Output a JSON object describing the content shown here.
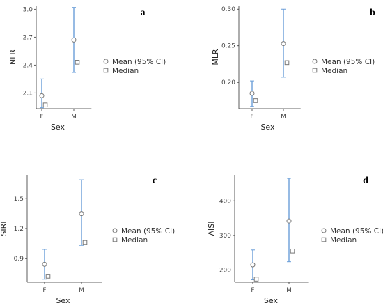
{
  "figure": {
    "legend": {
      "mean_label": "Mean (95% CI)",
      "median_label": "Median"
    },
    "colors": {
      "ci_line": "#6a9ed8",
      "marker_stroke": "#777777",
      "axis": "#333333"
    }
  },
  "chart_data": [
    {
      "panel": "a",
      "type": "scatter",
      "xlabel": "Sex",
      "ylabel": "NLR",
      "categories": [
        "F",
        "M"
      ],
      "yticks": [
        "2.1",
        "2.4",
        "2.7",
        "3.0"
      ],
      "ytick_values": [
        2.1,
        2.4,
        2.7,
        3.0
      ],
      "ylim": [
        1.93,
        3.04
      ],
      "mean": [
        2.07,
        2.67
      ],
      "ci_low": [
        1.94,
        2.32
      ],
      "ci_high": [
        2.25,
        3.02
      ],
      "median": [
        1.97,
        2.43
      ],
      "legend": [
        "Mean (95% CI)",
        "Median"
      ],
      "legend_position": "right",
      "grid": false
    },
    {
      "panel": "b",
      "type": "scatter",
      "xlabel": "Sex",
      "ylabel": "MLR",
      "categories": [
        "F",
        "M"
      ],
      "yticks": [
        "0.20",
        "0.25",
        "0.30"
      ],
      "ytick_values": [
        0.2,
        0.25,
        0.3
      ],
      "ylim": [
        0.164,
        0.305
      ],
      "mean": [
        0.185,
        0.253
      ],
      "ci_low": [
        0.167,
        0.207
      ],
      "ci_high": [
        0.202,
        0.3
      ],
      "median": [
        0.175,
        0.227
      ],
      "legend": [
        "Mean (95% CI)",
        "Median"
      ],
      "legend_position": "right",
      "grid": false
    },
    {
      "panel": "c",
      "type": "scatter",
      "xlabel": "Sex",
      "ylabel": "SIRI",
      "categories": [
        "F",
        "M"
      ],
      "yticks": [
        "0.9",
        "1.2",
        "1.5"
      ],
      "ytick_values": [
        0.9,
        1.2,
        1.5
      ],
      "ylim": [
        0.66,
        1.74
      ],
      "mean": [
        0.84,
        1.35
      ],
      "ci_low": [
        0.69,
        1.03
      ],
      "ci_high": [
        0.99,
        1.69
      ],
      "median": [
        0.72,
        1.06
      ],
      "legend": [
        "Mean (95% CI)",
        "Median"
      ],
      "legend_position": "right",
      "grid": false
    },
    {
      "panel": "d",
      "type": "scatter",
      "xlabel": "Sex",
      "ylabel": "AISI",
      "categories": [
        "F",
        "M"
      ],
      "yticks": [
        "200",
        "300",
        "400"
      ],
      "ytick_values": [
        200,
        300,
        400
      ],
      "ylim": [
        165,
        475
      ],
      "mean": [
        215,
        342
      ],
      "ci_low": [
        172,
        224
      ],
      "ci_high": [
        258,
        465
      ],
      "median": [
        174,
        255
      ],
      "legend": [
        "Mean (95% CI)",
        "Median"
      ],
      "legend_position": "right",
      "grid": false
    }
  ]
}
